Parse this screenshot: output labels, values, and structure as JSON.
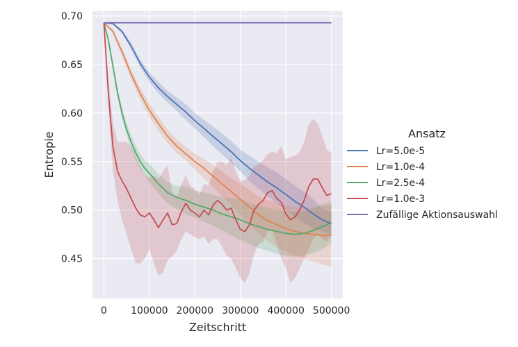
{
  "chart_data": {
    "type": "line",
    "xlabel": "Zeitschritt",
    "ylabel": "Entropie",
    "xlim": [
      -25000,
      525000
    ],
    "ylim": [
      0.409,
      0.705
    ],
    "xticks": [
      0,
      100000,
      200000,
      300000,
      400000,
      500000
    ],
    "yticks": [
      0.45,
      0.5,
      0.55,
      0.6,
      0.65,
      0.7
    ],
    "xtick_labels": [
      "0",
      "100000",
      "200000",
      "300000",
      "400000",
      "500000"
    ],
    "ytick_labels": [
      "0.45",
      "0.50",
      "0.55",
      "0.60",
      "0.65",
      "0.70"
    ],
    "grid": true,
    "legend": {
      "title": "Ansatz",
      "placement": "right"
    },
    "series": [
      {
        "name": "Lr=5.0e-5",
        "color": "#4c72b0",
        "x": [
          0,
          20000,
          40000,
          60000,
          80000,
          100000,
          120000,
          140000,
          160000,
          180000,
          200000,
          220000,
          240000,
          260000,
          280000,
          300000,
          320000,
          340000,
          360000,
          380000,
          400000,
          420000,
          440000,
          460000,
          480000,
          500000
        ],
        "y": [
          0.693,
          0.692,
          0.684,
          0.669,
          0.651,
          0.637,
          0.626,
          0.617,
          0.609,
          0.601,
          0.592,
          0.584,
          0.576,
          0.568,
          0.56,
          0.551,
          0.543,
          0.536,
          0.529,
          0.523,
          0.516,
          0.509,
          0.503,
          0.496,
          0.49,
          0.486
        ],
        "lower": [
          0.693,
          0.692,
          0.682,
          0.666,
          0.647,
          0.632,
          0.62,
          0.611,
          0.602,
          0.593,
          0.584,
          0.575,
          0.566,
          0.557,
          0.549,
          0.54,
          0.53,
          0.522,
          0.514,
          0.507,
          0.5,
          0.493,
          0.487,
          0.481,
          0.478,
          0.475
        ],
        "upper": [
          0.693,
          0.693,
          0.686,
          0.672,
          0.655,
          0.642,
          0.632,
          0.623,
          0.616,
          0.609,
          0.6,
          0.593,
          0.586,
          0.579,
          0.571,
          0.562,
          0.556,
          0.55,
          0.544,
          0.539,
          0.532,
          0.525,
          0.519,
          0.511,
          0.502,
          0.497
        ]
      },
      {
        "name": "Lr=1.0e-4",
        "color": "#dd8452",
        "x": [
          0,
          20000,
          40000,
          60000,
          80000,
          100000,
          120000,
          140000,
          160000,
          180000,
          200000,
          220000,
          240000,
          260000,
          280000,
          300000,
          320000,
          340000,
          360000,
          380000,
          400000,
          420000,
          440000,
          460000,
          480000,
          500000
        ],
        "y": [
          0.693,
          0.684,
          0.663,
          0.64,
          0.62,
          0.603,
          0.589,
          0.576,
          0.566,
          0.558,
          0.55,
          0.543,
          0.535,
          0.527,
          0.519,
          0.511,
          0.503,
          0.495,
          0.489,
          0.485,
          0.481,
          0.478,
          0.476,
          0.475,
          0.474,
          0.474
        ],
        "lower": [
          0.693,
          0.682,
          0.659,
          0.635,
          0.614,
          0.596,
          0.582,
          0.569,
          0.559,
          0.551,
          0.542,
          0.533,
          0.524,
          0.514,
          0.505,
          0.495,
          0.485,
          0.476,
          0.468,
          0.462,
          0.457,
          0.453,
          0.45,
          0.447,
          0.444,
          0.442
        ],
        "upper": [
          0.693,
          0.686,
          0.667,
          0.645,
          0.626,
          0.61,
          0.596,
          0.583,
          0.573,
          0.565,
          0.558,
          0.553,
          0.546,
          0.54,
          0.533,
          0.527,
          0.521,
          0.514,
          0.51,
          0.508,
          0.505,
          0.503,
          0.502,
          0.503,
          0.504,
          0.506
        ]
      },
      {
        "name": "Lr=2.5e-4",
        "color": "#55a868",
        "x": [
          0,
          10000,
          20000,
          30000,
          40000,
          50000,
          60000,
          70000,
          80000,
          90000,
          100000,
          120000,
          140000,
          160000,
          180000,
          200000,
          220000,
          240000,
          260000,
          280000,
          300000,
          320000,
          340000,
          360000,
          380000,
          400000,
          420000,
          440000,
          460000,
          480000,
          500000
        ],
        "y": [
          0.693,
          0.675,
          0.648,
          0.621,
          0.6,
          0.583,
          0.57,
          0.559,
          0.55,
          0.543,
          0.538,
          0.527,
          0.518,
          0.513,
          0.51,
          0.506,
          0.503,
          0.5,
          0.496,
          0.493,
          0.49,
          0.486,
          0.483,
          0.48,
          0.478,
          0.476,
          0.475,
          0.476,
          0.479,
          0.483,
          0.487
        ],
        "lower": [
          0.693,
          0.672,
          0.644,
          0.616,
          0.594,
          0.577,
          0.563,
          0.551,
          0.542,
          0.535,
          0.528,
          0.517,
          0.507,
          0.501,
          0.496,
          0.492,
          0.488,
          0.484,
          0.479,
          0.474,
          0.469,
          0.465,
          0.461,
          0.458,
          0.455,
          0.453,
          0.452,
          0.453,
          0.456,
          0.46,
          0.466
        ],
        "upper": [
          0.693,
          0.678,
          0.652,
          0.626,
          0.606,
          0.589,
          0.577,
          0.567,
          0.558,
          0.551,
          0.548,
          0.537,
          0.529,
          0.525,
          0.524,
          0.52,
          0.518,
          0.516,
          0.513,
          0.512,
          0.511,
          0.507,
          0.505,
          0.502,
          0.501,
          0.499,
          0.498,
          0.499,
          0.502,
          0.506,
          0.508
        ]
      },
      {
        "name": "Lr=1.0e-3",
        "color": "#c44e52",
        "x": [
          0,
          10000,
          20000,
          30000,
          40000,
          50000,
          60000,
          70000,
          80000,
          90000,
          100000,
          110000,
          120000,
          130000,
          140000,
          150000,
          160000,
          170000,
          180000,
          190000,
          200000,
          210000,
          220000,
          230000,
          240000,
          250000,
          260000,
          270000,
          280000,
          290000,
          300000,
          310000,
          320000,
          330000,
          340000,
          350000,
          360000,
          370000,
          380000,
          390000,
          400000,
          410000,
          420000,
          430000,
          440000,
          450000,
          460000,
          470000,
          480000,
          490000,
          500000
        ],
        "y": [
          0.693,
          0.62,
          0.565,
          0.54,
          0.53,
          0.522,
          0.512,
          0.502,
          0.495,
          0.493,
          0.497,
          0.49,
          0.482,
          0.49,
          0.497,
          0.485,
          0.486,
          0.498,
          0.507,
          0.5,
          0.497,
          0.493,
          0.5,
          0.495,
          0.505,
          0.51,
          0.506,
          0.5,
          0.502,
          0.49,
          0.48,
          0.478,
          0.485,
          0.5,
          0.506,
          0.51,
          0.518,
          0.52,
          0.512,
          0.508,
          0.496,
          0.49,
          0.493,
          0.5,
          0.51,
          0.524,
          0.532,
          0.532,
          0.523,
          0.515,
          0.517
        ],
        "lower": [
          0.693,
          0.605,
          0.54,
          0.51,
          0.49,
          0.475,
          0.46,
          0.445,
          0.445,
          0.45,
          0.46,
          0.445,
          0.432,
          0.436,
          0.448,
          0.452,
          0.458,
          0.47,
          0.478,
          0.475,
          0.472,
          0.47,
          0.473,
          0.465,
          0.47,
          0.47,
          0.462,
          0.453,
          0.45,
          0.44,
          0.43,
          0.425,
          0.435,
          0.455,
          0.465,
          0.468,
          0.478,
          0.48,
          0.465,
          0.45,
          0.44,
          0.425,
          0.43,
          0.44,
          0.45,
          0.46,
          0.47,
          0.475,
          0.47,
          0.468,
          0.475
        ],
        "upper": [
          0.693,
          0.635,
          0.59,
          0.57,
          0.57,
          0.57,
          0.565,
          0.555,
          0.545,
          0.535,
          0.534,
          0.535,
          0.532,
          0.54,
          0.546,
          0.518,
          0.514,
          0.526,
          0.536,
          0.525,
          0.522,
          0.516,
          0.527,
          0.525,
          0.54,
          0.55,
          0.55,
          0.547,
          0.554,
          0.54,
          0.53,
          0.531,
          0.535,
          0.545,
          0.547,
          0.552,
          0.558,
          0.56,
          0.559,
          0.566,
          0.552,
          0.555,
          0.556,
          0.56,
          0.57,
          0.588,
          0.594,
          0.589,
          0.576,
          0.562,
          0.559
        ]
      },
      {
        "name": "Zufällige Aktionsauswahl",
        "color": "#8172b3",
        "x": [
          0,
          500000
        ],
        "y": [
          0.693,
          0.693
        ]
      }
    ]
  }
}
